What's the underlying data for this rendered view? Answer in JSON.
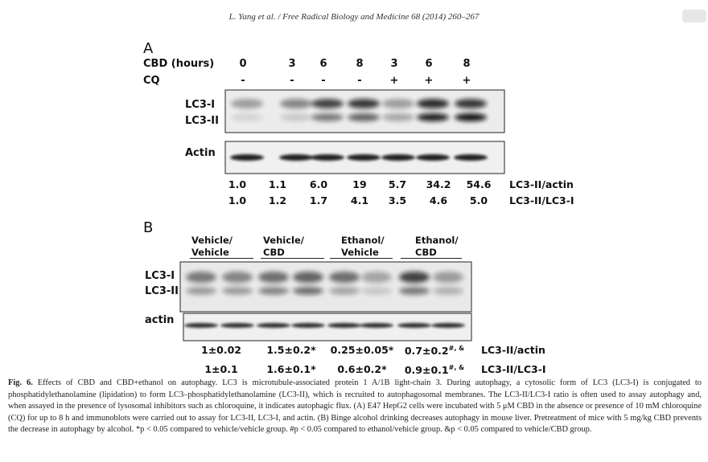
{
  "header": {
    "citation": "L. Yang et al. / Free Radical Biology and Medicine 68 (2014) 260–267"
  },
  "panel_a": {
    "label": "A",
    "cbd_label": "CBD (hours)",
    "cbd_hours": [
      "0",
      "3",
      "6",
      "8",
      "3",
      "6",
      "8"
    ],
    "cq_label": "CQ",
    "cq": [
      "-",
      "-",
      "-",
      "-",
      "+",
      "+",
      "+"
    ],
    "blot_labels": [
      "LC3-I",
      "LC3-II"
    ],
    "loading_label": "Actin",
    "rows": [
      {
        "label": "LC3-II/actin",
        "values": [
          "1.0",
          "1.1",
          "6.0",
          "19",
          "5.7",
          "34.2",
          "54.6"
        ]
      },
      {
        "label": "LC3-II/LC3-I",
        "values": [
          "1.0",
          "1.2",
          "1.7",
          "4.1",
          "3.5",
          "4.6",
          "5.0"
        ]
      }
    ]
  },
  "panel_b": {
    "label": "B",
    "groups": [
      [
        "Vehicle/",
        "Vehicle"
      ],
      [
        "Vehicle/",
        "CBD"
      ],
      [
        "Ethanol/",
        "Vehicle"
      ],
      [
        "Ethanol/",
        "CBD"
      ]
    ],
    "blot_labels": [
      "LC3-I",
      "LC3-II"
    ],
    "loading_label": "actin",
    "rows": [
      {
        "label": "LC3-II/actin",
        "values": [
          {
            "text": "1±0.02"
          },
          {
            "text": "1.5±0.2*"
          },
          {
            "text": "0.25±0.05*"
          },
          {
            "text": "0.7±0.2",
            "sup": "#, &"
          }
        ]
      },
      {
        "label": "LC3-II/LC3-I",
        "values": [
          {
            "text": "1±0.1"
          },
          {
            "text": "1.6±0.1*"
          },
          {
            "text": "0.6±0.2*"
          },
          {
            "text": "0.9±0.1",
            "sup": "#, &"
          }
        ]
      }
    ]
  },
  "caption": {
    "label": "Fig. 6.",
    "text": "Effects of CBD and CBD+ethanol on autophagy. LC3 is microtubule-associated protein 1 A/1B light-chain 3. During autophagy, a cytosolic form of LC3 (LC3-I) is conjugated to phosphatidylethanolamine (lipidation) to form LC3–phosphatidylethanolamine (LC3-II), which is recruited to autophagosomal membranes. The LC3-II/LC3-I ratio is often used to assay autophagy and, when assayed in the presence of lysosomal inhibitors such as chloroquine, it indicates autophagic flux. (A) E47 HepG2 cells were incubated with 5 μM CBD in the absence or presence of 10 mM chloroquine (CQ) for up to 8 h and immunoblots were carried out to assay for LC3-II, LC3-I, and actin. (B) Binge alcohol drinking decreases autophagy in mouse liver. Pretreatment of mice with 5 mg/kg CBD prevents the decrease in autophagy by alcohol. *p < 0.05 compared to vehicle/vehicle group. #p < 0.05 compared to ethanol/vehicle group. &p < 0.05 compared to vehicle/CBD group."
  }
}
